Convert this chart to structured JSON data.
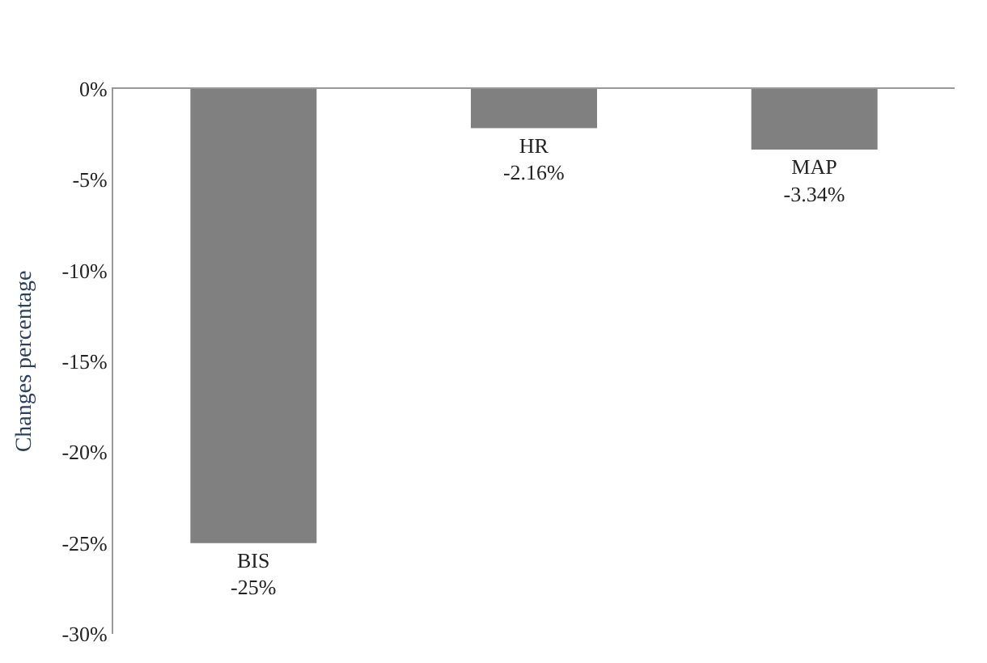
{
  "chart_data": {
    "type": "bar",
    "ylabel": "Changes percentage",
    "categories": [
      null,
      null,
      null
    ],
    "values": [
      -25,
      -2.16,
      -3.34
    ],
    "value_labels": [
      "-25%",
      "-2.16%",
      "-3.34%"
    ],
    "annotations": [
      "BIS",
      "HR",
      "MAP"
    ],
    "color": "#808080",
    "ylim": [
      -30,
      0
    ],
    "yticks": [
      {
        "value": 0,
        "label": "0%"
      },
      {
        "value": -5,
        "label": "-5%"
      },
      {
        "value": -10,
        "label": "-10%"
      },
      {
        "value": -15,
        "label": "-15%"
      },
      {
        "value": -20,
        "label": "-20%"
      },
      {
        "value": -25,
        "label": "-25%"
      },
      {
        "value": -30,
        "label": "-30%"
      }
    ],
    "tick_labels": "y"
  }
}
